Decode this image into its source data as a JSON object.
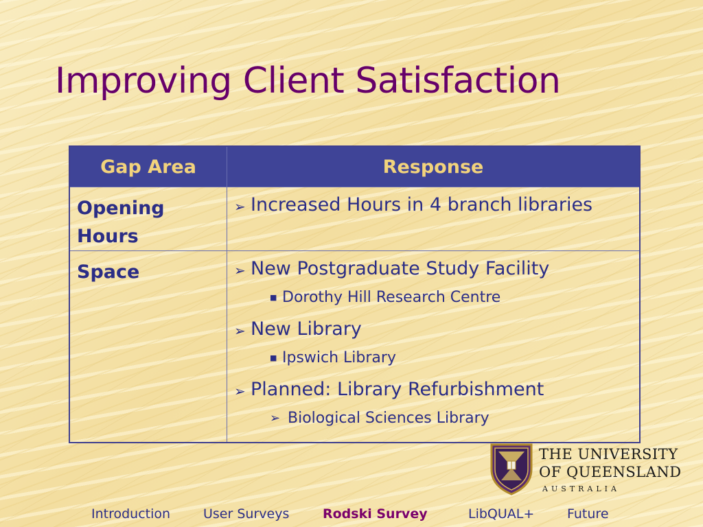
{
  "slide": {
    "title": "Improving Client Satisfaction"
  },
  "table": {
    "headers": [
      "Gap Area",
      "Response"
    ],
    "rows": [
      {
        "area_line1": "Opening",
        "area_line2": "Hours",
        "items": [
          {
            "text": "Increased Hours in 4 branch libraries",
            "sub": []
          }
        ]
      },
      {
        "area_line1": "Space",
        "items": [
          {
            "text": "New Postgraduate Study Facility",
            "sub": [
              "Dorothy Hill Research Centre"
            ]
          },
          {
            "text": "New Library",
            "sub": [
              "Ipswich Library"
            ]
          },
          {
            "text": "Planned: Library Refurbishment",
            "sub": [
              "Biological Sciences Library"
            ]
          }
        ]
      }
    ]
  },
  "logo": {
    "line1": "THE UNIVERSITY",
    "line2": "OF QUEENSLAND",
    "line3": "AUSTRALIA"
  },
  "footer": {
    "items": [
      "Introduction",
      "User Surveys",
      "Rodski Survey",
      "LibQUAL+",
      "Future"
    ],
    "active": "Rodski Survey"
  },
  "colors": {
    "title": "#66006a",
    "header_bg": "#3f4497",
    "header_text": "#f2d37c",
    "body_text": "#2b2d86"
  },
  "icons": {
    "bullet_level1": "arrowhead-bullet-icon",
    "bullet_level2": "square-bullet-icon",
    "bullet_level2_alt": "arrowhead-bullet-icon"
  }
}
